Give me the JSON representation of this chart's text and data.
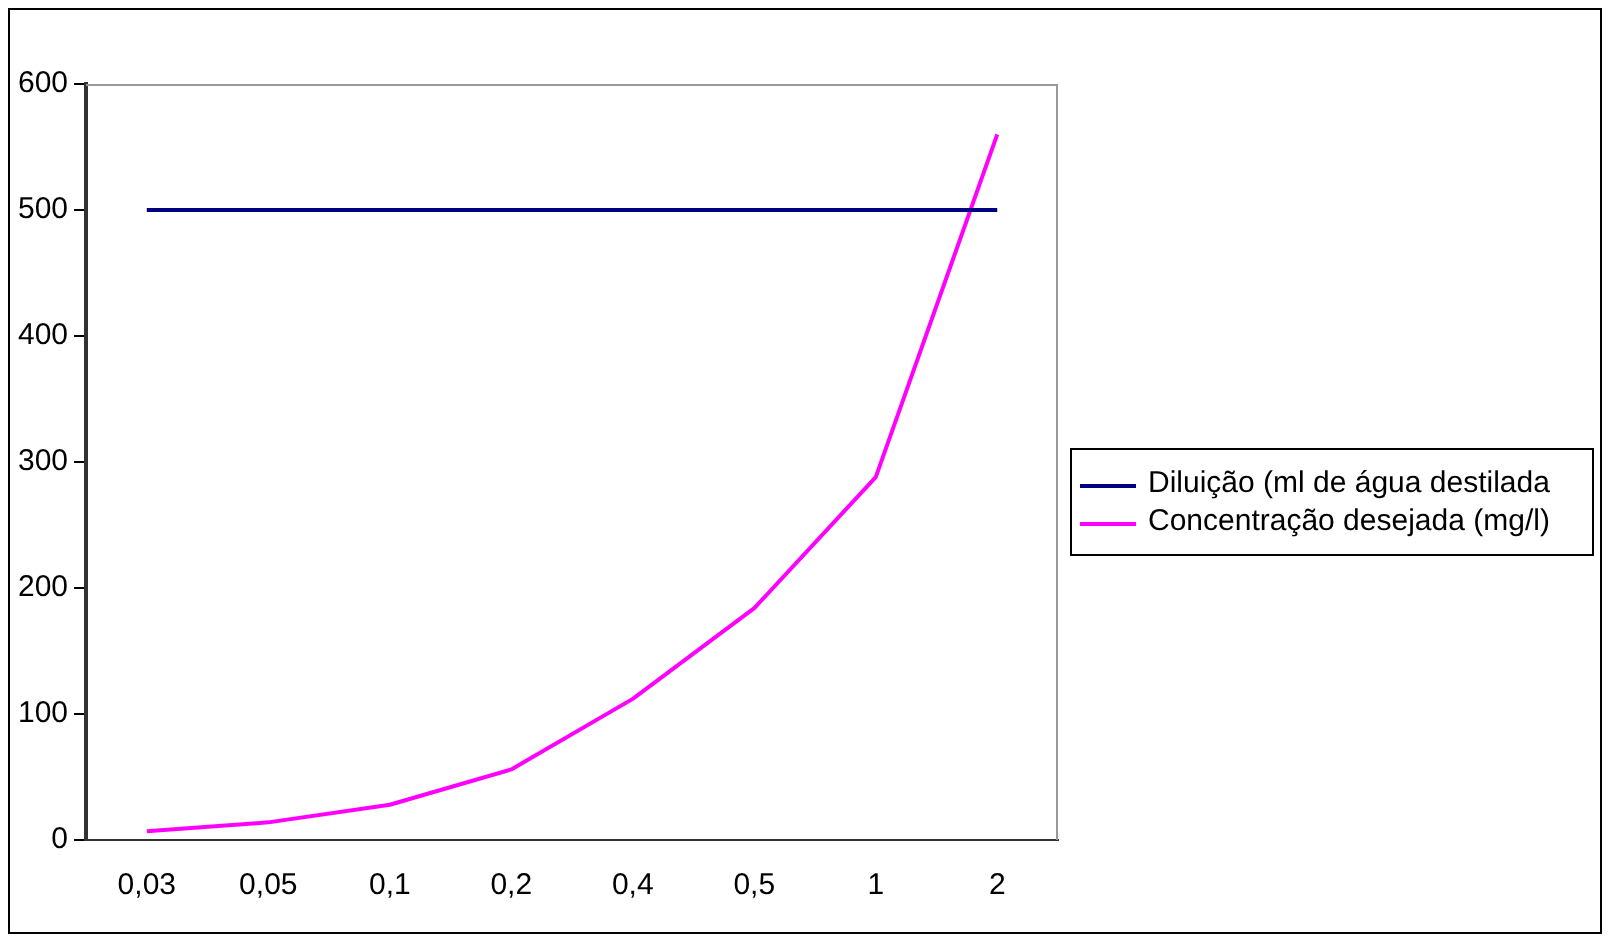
{
  "chart_data": {
    "type": "line",
    "categories": [
      "0,03",
      "0,05",
      "0,1",
      "0,2",
      "0,4",
      "0,5",
      "1",
      "2"
    ],
    "series": [
      {
        "name": "Diluição (ml de água destilada",
        "color": "#000080",
        "values": [
          500,
          500,
          500,
          500,
          500,
          500,
          500,
          500
        ]
      },
      {
        "name": "Concentração desejada (mg/l)",
        "color": "#ff00ff",
        "values": [
          7,
          14,
          28,
          56,
          112,
          184,
          288,
          560
        ]
      }
    ],
    "ylim": [
      0,
      600
    ],
    "yticks": [
      0,
      100,
      200,
      300,
      400,
      500,
      600
    ],
    "grid": false,
    "legend": "right",
    "marker": "none"
  }
}
